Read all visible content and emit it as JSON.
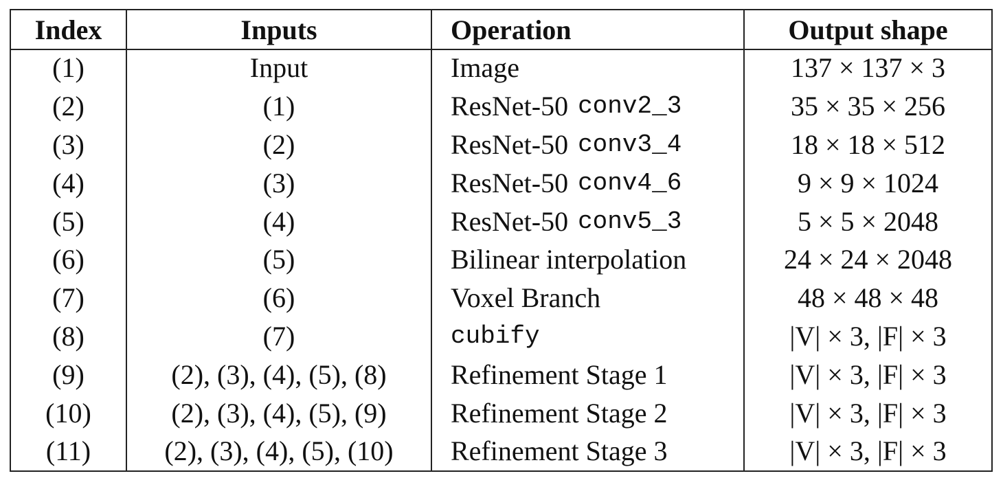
{
  "headers": {
    "index": "Index",
    "inputs": "Inputs",
    "operation": "Operation",
    "output_shape": "Output shape"
  },
  "rows": [
    {
      "index": "(1)",
      "inputs": "Input",
      "op_text": "Image",
      "op_code": "",
      "output": "137 × 137 × 3"
    },
    {
      "index": "(2)",
      "inputs": "(1)",
      "op_text": "ResNet-50",
      "op_code": "conv2_3",
      "output": "35 × 35 × 256"
    },
    {
      "index": "(3)",
      "inputs": "(2)",
      "op_text": "ResNet-50",
      "op_code": "conv3_4",
      "output": "18 × 18 × 512"
    },
    {
      "index": "(4)",
      "inputs": "(3)",
      "op_text": "ResNet-50",
      "op_code": "conv4_6",
      "output": "9 × 9 × 1024"
    },
    {
      "index": "(5)",
      "inputs": "(4)",
      "op_text": "ResNet-50",
      "op_code": "conv5_3",
      "output": "5 × 5 × 2048"
    },
    {
      "index": "(6)",
      "inputs": "(5)",
      "op_text": "Bilinear interpolation",
      "op_code": "",
      "output": "24 × 24 × 2048"
    },
    {
      "index": "(7)",
      "inputs": "(6)",
      "op_text": "Voxel Branch",
      "op_code": "",
      "output": "48 × 48 × 48"
    },
    {
      "index": "(8)",
      "inputs": "(7)",
      "op_text": "",
      "op_code": "cubify",
      "output": "|V| × 3, |F| × 3"
    },
    {
      "index": "(9)",
      "inputs": "(2), (3), (4), (5), (8)",
      "op_text": "Refinement Stage 1",
      "op_code": "",
      "output": "|V| × 3, |F| × 3"
    },
    {
      "index": "(10)",
      "inputs": "(2), (3), (4), (5), (9)",
      "op_text": "Refinement Stage 2",
      "op_code": "",
      "output": "|V| × 3, |F| × 3"
    },
    {
      "index": "(11)",
      "inputs": "(2), (3), (4), (5), (10)",
      "op_text": "Refinement Stage 3",
      "op_code": "",
      "output": "|V| × 3, |F| × 3"
    }
  ]
}
